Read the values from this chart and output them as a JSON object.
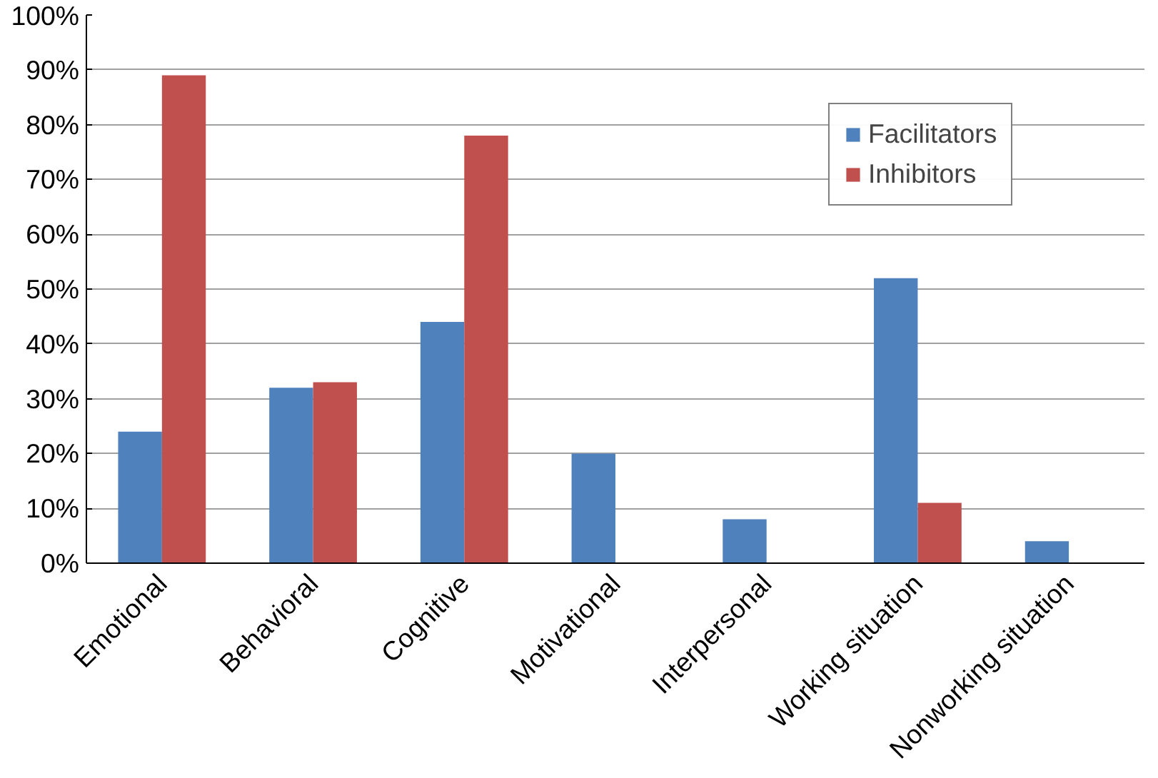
{
  "chart_data": {
    "type": "bar",
    "categories": [
      "Emotional",
      "Behavioral",
      "Cognitive",
      "Motivational",
      "Interpersonal",
      "Working situation",
      "Nonworking situation"
    ],
    "series": [
      {
        "name": "Facilitators",
        "color": "#4f81bd",
        "values": [
          24,
          32,
          44,
          20,
          8,
          52,
          4
        ]
      },
      {
        "name": "Inhibitors",
        "color": "#c0504d",
        "values": [
          89,
          33,
          78,
          0,
          0,
          11,
          0
        ]
      }
    ],
    "ylim": [
      0,
      100
    ],
    "yticks": [
      {
        "value": 0,
        "label": "0%"
      },
      {
        "value": 10,
        "label": "10%"
      },
      {
        "value": 20,
        "label": "20%"
      },
      {
        "value": 30,
        "label": "30%"
      },
      {
        "value": 40,
        "label": "40%"
      },
      {
        "value": 50,
        "label": "50%"
      },
      {
        "value": 60,
        "label": "60%"
      },
      {
        "value": 70,
        "label": "70%"
      },
      {
        "value": 80,
        "label": "80%"
      },
      {
        "value": 90,
        "label": "90%"
      },
      {
        "value": 100,
        "label": "100%"
      }
    ],
    "grid": "y",
    "legend": "top right"
  }
}
